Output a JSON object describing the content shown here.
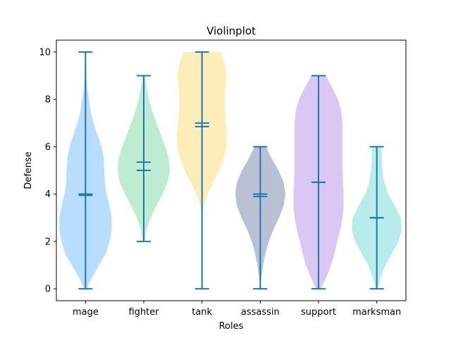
{
  "chart_data": {
    "type": "violin",
    "title": "Violinplot",
    "xlabel": "Roles",
    "ylabel": "Defense",
    "ylim": [
      -0.5,
      10.5
    ],
    "yticks": [
      0,
      2,
      4,
      6,
      8,
      10
    ],
    "grid": false,
    "categories": [
      "mage",
      "fighter",
      "tank",
      "assassin",
      "support",
      "marksman"
    ],
    "colors": [
      "#a0d2ff",
      "#a8e6c3",
      "#fce8a2",
      "#a3abc6",
      "#cdb4ef",
      "#9fe6e4"
    ],
    "stat_color": "#1f77b4",
    "violins": [
      {
        "category": "mage",
        "min": 0,
        "max": 10,
        "mean": 4.0,
        "median": 3.95,
        "density": [
          [
            0,
            0.02
          ],
          [
            0.5,
            0.12
          ],
          [
            1,
            0.24
          ],
          [
            1.5,
            0.36
          ],
          [
            2,
            0.42
          ],
          [
            2.5,
            0.46
          ],
          [
            3,
            0.46
          ],
          [
            3.5,
            0.42
          ],
          [
            4,
            0.37
          ],
          [
            4.5,
            0.34
          ],
          [
            5,
            0.33
          ],
          [
            5.5,
            0.32
          ],
          [
            6,
            0.28
          ],
          [
            6.5,
            0.21
          ],
          [
            7,
            0.14
          ],
          [
            7.5,
            0.09
          ],
          [
            8,
            0.06
          ],
          [
            8.5,
            0.03
          ],
          [
            9,
            0.015
          ],
          [
            10,
            0.005
          ]
        ]
      },
      {
        "category": "fighter",
        "min": 2,
        "max": 9,
        "mean": 5.35,
        "median": 5.0,
        "density": [
          [
            2,
            0.02
          ],
          [
            2.5,
            0.05
          ],
          [
            3,
            0.12
          ],
          [
            3.5,
            0.22
          ],
          [
            4,
            0.33
          ],
          [
            4.5,
            0.42
          ],
          [
            5,
            0.46
          ],
          [
            5.5,
            0.44
          ],
          [
            6,
            0.38
          ],
          [
            6.5,
            0.3
          ],
          [
            7,
            0.22
          ],
          [
            7.5,
            0.15
          ],
          [
            8,
            0.09
          ],
          [
            8.5,
            0.05
          ],
          [
            9,
            0.02
          ]
        ]
      },
      {
        "category": "tank",
        "min": 0,
        "max": 10,
        "mean": 7.0,
        "median": 6.85,
        "density": [
          [
            0,
            0.0
          ],
          [
            3,
            0.0
          ],
          [
            3.5,
            0.03
          ],
          [
            4,
            0.1
          ],
          [
            4.5,
            0.2
          ],
          [
            5,
            0.3
          ],
          [
            5.5,
            0.38
          ],
          [
            6,
            0.43
          ],
          [
            6.5,
            0.44
          ],
          [
            7,
            0.42
          ],
          [
            7.5,
            0.4
          ],
          [
            8,
            0.4
          ],
          [
            8.5,
            0.41
          ],
          [
            9,
            0.43
          ],
          [
            9.5,
            0.4
          ],
          [
            10,
            0.32
          ]
        ]
      },
      {
        "category": "assassin",
        "min": 0,
        "max": 6,
        "mean": 4.0,
        "median": 3.9,
        "density": [
          [
            0,
            0.0
          ],
          [
            0.5,
            0.02
          ],
          [
            1,
            0.05
          ],
          [
            1.5,
            0.09
          ],
          [
            2,
            0.15
          ],
          [
            2.5,
            0.23
          ],
          [
            3,
            0.33
          ],
          [
            3.5,
            0.41
          ],
          [
            4,
            0.44
          ],
          [
            4.5,
            0.41
          ],
          [
            5,
            0.32
          ],
          [
            5.5,
            0.2
          ],
          [
            6,
            0.1
          ]
        ]
      },
      {
        "category": "support",
        "min": 0,
        "max": 9,
        "mean": 4.5,
        "median": 4.5,
        "density": [
          [
            0,
            0.04
          ],
          [
            0.5,
            0.14
          ],
          [
            1,
            0.22
          ],
          [
            1.5,
            0.28
          ],
          [
            2,
            0.33
          ],
          [
            2.5,
            0.38
          ],
          [
            3,
            0.42
          ],
          [
            3.5,
            0.44
          ],
          [
            4,
            0.44
          ],
          [
            4.5,
            0.43
          ],
          [
            5,
            0.42
          ],
          [
            5.5,
            0.42
          ],
          [
            6,
            0.42
          ],
          [
            6.5,
            0.42
          ],
          [
            7,
            0.42
          ],
          [
            7.5,
            0.4
          ],
          [
            8,
            0.34
          ],
          [
            8.5,
            0.24
          ],
          [
            9,
            0.13
          ]
        ]
      },
      {
        "category": "marksman",
        "min": 0,
        "max": 6,
        "mean": 3.0,
        "median": 3.0,
        "density": [
          [
            0,
            0.02
          ],
          [
            0.5,
            0.07
          ],
          [
            1,
            0.15
          ],
          [
            1.5,
            0.27
          ],
          [
            2,
            0.38
          ],
          [
            2.5,
            0.44
          ],
          [
            3,
            0.42
          ],
          [
            3.5,
            0.32
          ],
          [
            4,
            0.2
          ],
          [
            4.5,
            0.13
          ],
          [
            5,
            0.1
          ],
          [
            5.5,
            0.09
          ],
          [
            6,
            0.08
          ]
        ]
      }
    ]
  }
}
